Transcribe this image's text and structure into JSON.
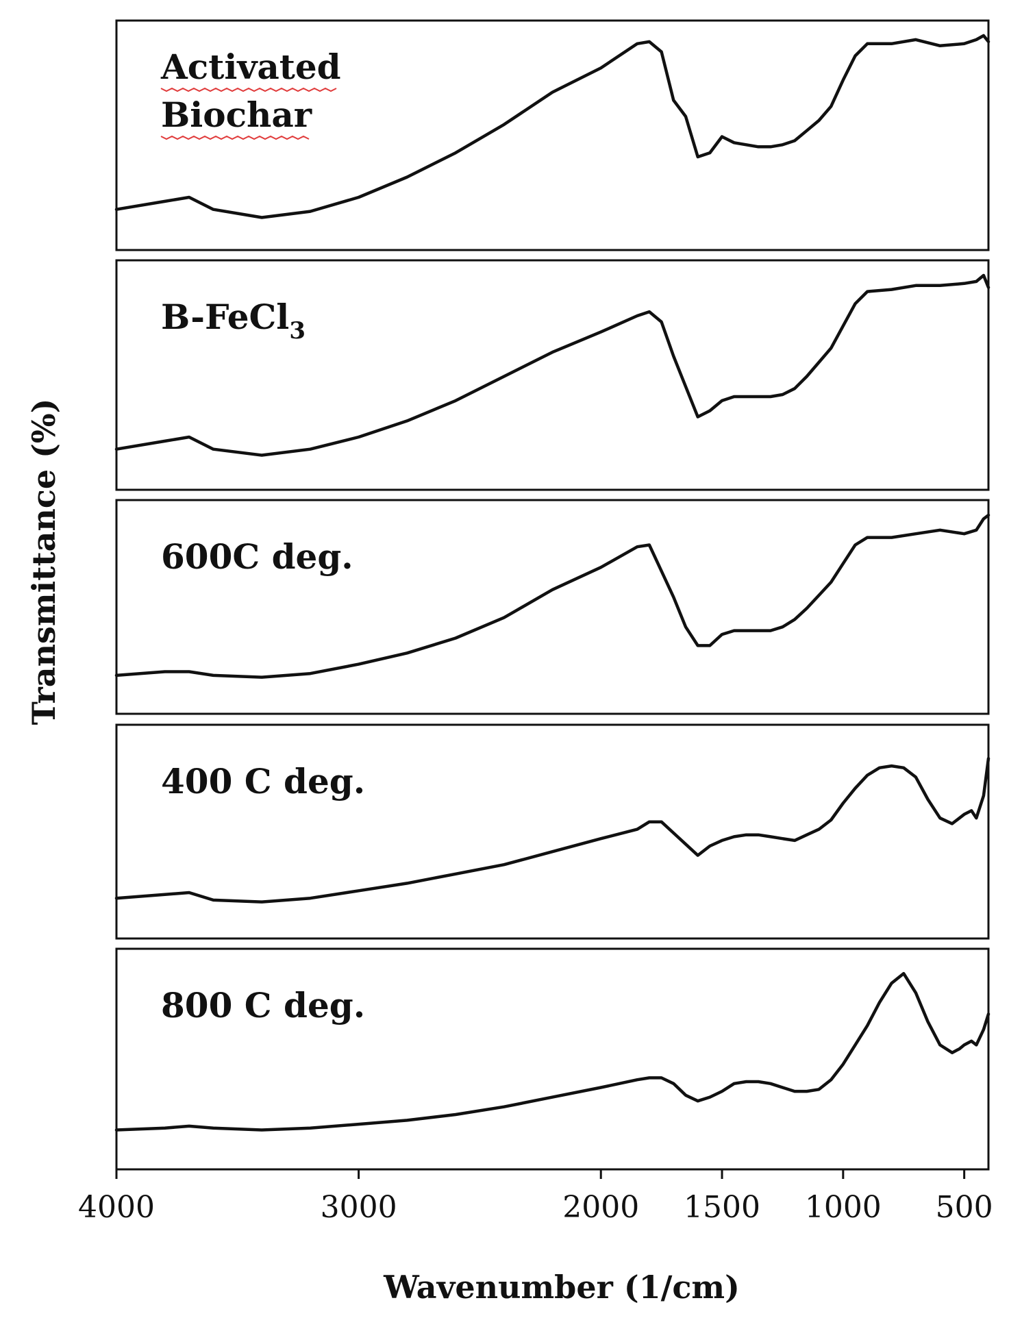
{
  "chart_data": {
    "type": "line",
    "title": "",
    "xlabel": "Wavenumber (1/cm)",
    "ylabel": "Transmittance (%)",
    "xlim": [
      4000,
      400
    ],
    "x_reversed": true,
    "xticks": [
      4000,
      3000,
      2000,
      1500,
      1000,
      500
    ],
    "xtick_labels": [
      "4000",
      "3000",
      "2000",
      "1500",
      "1000",
      "500"
    ],
    "grid": false,
    "stacked_panels": true,
    "panels": [
      {
        "label_lines": [
          "Activated",
          "Biochar"
        ],
        "label_underlined": true,
        "points": [
          [
            4000,
            0.14
          ],
          [
            3800,
            0.18
          ],
          [
            3700,
            0.2
          ],
          [
            3600,
            0.14
          ],
          [
            3400,
            0.1
          ],
          [
            3200,
            0.13
          ],
          [
            3000,
            0.2
          ],
          [
            2800,
            0.3
          ],
          [
            2600,
            0.42
          ],
          [
            2400,
            0.56
          ],
          [
            2200,
            0.72
          ],
          [
            2000,
            0.84
          ],
          [
            1850,
            0.96
          ],
          [
            1800,
            0.97
          ],
          [
            1750,
            0.92
          ],
          [
            1700,
            0.68
          ],
          [
            1650,
            0.6
          ],
          [
            1600,
            0.4
          ],
          [
            1550,
            0.42
          ],
          [
            1500,
            0.5
          ],
          [
            1450,
            0.47
          ],
          [
            1400,
            0.46
          ],
          [
            1350,
            0.45
          ],
          [
            1300,
            0.45
          ],
          [
            1250,
            0.46
          ],
          [
            1200,
            0.48
          ],
          [
            1150,
            0.53
          ],
          [
            1100,
            0.58
          ],
          [
            1050,
            0.65
          ],
          [
            1000,
            0.78
          ],
          [
            950,
            0.9
          ],
          [
            900,
            0.96
          ],
          [
            800,
            0.96
          ],
          [
            700,
            0.98
          ],
          [
            600,
            0.95
          ],
          [
            500,
            0.96
          ],
          [
            450,
            0.98
          ],
          [
            420,
            1.0
          ],
          [
            400,
            0.97
          ]
        ]
      },
      {
        "label_main": "B-FeCl",
        "label_sub": "3",
        "points": [
          [
            4000,
            0.14
          ],
          [
            3800,
            0.18
          ],
          [
            3700,
            0.2
          ],
          [
            3600,
            0.14
          ],
          [
            3400,
            0.11
          ],
          [
            3200,
            0.14
          ],
          [
            3000,
            0.2
          ],
          [
            2800,
            0.28
          ],
          [
            2600,
            0.38
          ],
          [
            2400,
            0.5
          ],
          [
            2200,
            0.62
          ],
          [
            2000,
            0.72
          ],
          [
            1850,
            0.8
          ],
          [
            1800,
            0.82
          ],
          [
            1750,
            0.77
          ],
          [
            1700,
            0.6
          ],
          [
            1650,
            0.45
          ],
          [
            1600,
            0.3
          ],
          [
            1550,
            0.33
          ],
          [
            1500,
            0.38
          ],
          [
            1450,
            0.4
          ],
          [
            1400,
            0.4
          ],
          [
            1350,
            0.4
          ],
          [
            1300,
            0.4
          ],
          [
            1250,
            0.41
          ],
          [
            1200,
            0.44
          ],
          [
            1150,
            0.5
          ],
          [
            1100,
            0.57
          ],
          [
            1050,
            0.64
          ],
          [
            1000,
            0.75
          ],
          [
            950,
            0.86
          ],
          [
            900,
            0.92
          ],
          [
            800,
            0.93
          ],
          [
            700,
            0.95
          ],
          [
            600,
            0.95
          ],
          [
            500,
            0.96
          ],
          [
            450,
            0.97
          ],
          [
            420,
            1.0
          ],
          [
            400,
            0.94
          ]
        ]
      },
      {
        "label": "600C deg.",
        "points": [
          [
            4000,
            0.14
          ],
          [
            3800,
            0.16
          ],
          [
            3700,
            0.16
          ],
          [
            3600,
            0.14
          ],
          [
            3400,
            0.13
          ],
          [
            3200,
            0.15
          ],
          [
            3000,
            0.2
          ],
          [
            2800,
            0.26
          ],
          [
            2600,
            0.34
          ],
          [
            2400,
            0.45
          ],
          [
            2200,
            0.6
          ],
          [
            2000,
            0.72
          ],
          [
            1850,
            0.83
          ],
          [
            1800,
            0.84
          ],
          [
            1750,
            0.7
          ],
          [
            1700,
            0.56
          ],
          [
            1650,
            0.4
          ],
          [
            1600,
            0.3
          ],
          [
            1550,
            0.3
          ],
          [
            1500,
            0.36
          ],
          [
            1450,
            0.38
          ],
          [
            1400,
            0.38
          ],
          [
            1350,
            0.38
          ],
          [
            1300,
            0.38
          ],
          [
            1250,
            0.4
          ],
          [
            1200,
            0.44
          ],
          [
            1150,
            0.5
          ],
          [
            1100,
            0.57
          ],
          [
            1050,
            0.64
          ],
          [
            1000,
            0.74
          ],
          [
            950,
            0.84
          ],
          [
            900,
            0.88
          ],
          [
            800,
            0.88
          ],
          [
            700,
            0.9
          ],
          [
            600,
            0.92
          ],
          [
            500,
            0.9
          ],
          [
            450,
            0.92
          ],
          [
            420,
            0.98
          ],
          [
            400,
            1.0
          ]
        ]
      },
      {
        "label": "400 C deg.",
        "points": [
          [
            4000,
            0.15
          ],
          [
            3800,
            0.17
          ],
          [
            3700,
            0.18
          ],
          [
            3600,
            0.14
          ],
          [
            3400,
            0.13
          ],
          [
            3200,
            0.15
          ],
          [
            3000,
            0.19
          ],
          [
            2800,
            0.23
          ],
          [
            2600,
            0.28
          ],
          [
            2400,
            0.33
          ],
          [
            2200,
            0.4
          ],
          [
            2000,
            0.47
          ],
          [
            1850,
            0.52
          ],
          [
            1800,
            0.56
          ],
          [
            1750,
            0.56
          ],
          [
            1700,
            0.5
          ],
          [
            1650,
            0.44
          ],
          [
            1600,
            0.38
          ],
          [
            1550,
            0.43
          ],
          [
            1500,
            0.46
          ],
          [
            1450,
            0.48
          ],
          [
            1400,
            0.49
          ],
          [
            1350,
            0.49
          ],
          [
            1300,
            0.48
          ],
          [
            1250,
            0.47
          ],
          [
            1200,
            0.46
          ],
          [
            1150,
            0.49
          ],
          [
            1100,
            0.52
          ],
          [
            1050,
            0.57
          ],
          [
            1000,
            0.66
          ],
          [
            950,
            0.74
          ],
          [
            900,
            0.81
          ],
          [
            850,
            0.85
          ],
          [
            800,
            0.86
          ],
          [
            750,
            0.85
          ],
          [
            700,
            0.8
          ],
          [
            650,
            0.68
          ],
          [
            600,
            0.58
          ],
          [
            550,
            0.55
          ],
          [
            500,
            0.6
          ],
          [
            470,
            0.62
          ],
          [
            450,
            0.58
          ],
          [
            420,
            0.7
          ],
          [
            400,
            0.9
          ]
        ]
      },
      {
        "label": "800 C deg.",
        "points": [
          [
            4000,
            0.14
          ],
          [
            3800,
            0.15
          ],
          [
            3700,
            0.16
          ],
          [
            3600,
            0.15
          ],
          [
            3400,
            0.14
          ],
          [
            3200,
            0.15
          ],
          [
            3000,
            0.17
          ],
          [
            2800,
            0.19
          ],
          [
            2600,
            0.22
          ],
          [
            2400,
            0.26
          ],
          [
            2200,
            0.31
          ],
          [
            2000,
            0.36
          ],
          [
            1850,
            0.4
          ],
          [
            1800,
            0.41
          ],
          [
            1750,
            0.41
          ],
          [
            1700,
            0.38
          ],
          [
            1650,
            0.32
          ],
          [
            1600,
            0.29
          ],
          [
            1550,
            0.31
          ],
          [
            1500,
            0.34
          ],
          [
            1450,
            0.38
          ],
          [
            1400,
            0.39
          ],
          [
            1350,
            0.39
          ],
          [
            1300,
            0.38
          ],
          [
            1250,
            0.36
          ],
          [
            1200,
            0.34
          ],
          [
            1150,
            0.34
          ],
          [
            1100,
            0.35
          ],
          [
            1050,
            0.4
          ],
          [
            1000,
            0.48
          ],
          [
            950,
            0.58
          ],
          [
            900,
            0.68
          ],
          [
            850,
            0.8
          ],
          [
            800,
            0.9
          ],
          [
            750,
            0.95
          ],
          [
            700,
            0.85
          ],
          [
            650,
            0.7
          ],
          [
            600,
            0.58
          ],
          [
            550,
            0.54
          ],
          [
            520,
            0.56
          ],
          [
            500,
            0.58
          ],
          [
            470,
            0.6
          ],
          [
            450,
            0.58
          ],
          [
            420,
            0.66
          ],
          [
            400,
            0.74
          ]
        ]
      }
    ]
  }
}
